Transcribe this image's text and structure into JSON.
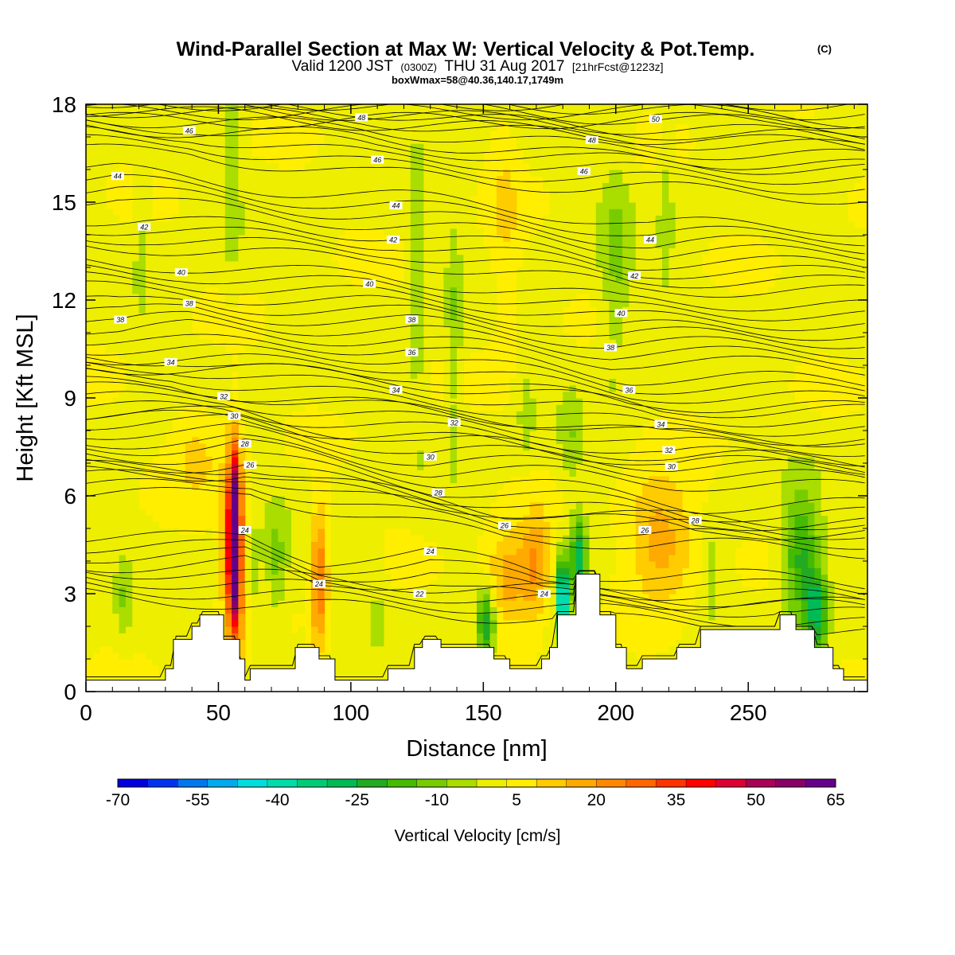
{
  "chart_data": {
    "type": "heatmap",
    "title": "Wind-Parallel Section at Max W: Vertical Velocity & Pot.Temp.",
    "title_mark": "(C)",
    "subtitle_prefix": "Valid 1200 JST",
    "subtitle_utc": "(0300Z)",
    "subtitle_date": "THU 31 Aug 2017",
    "subtitle_fcst": "[21hrFcst@1223z]",
    "subtitle2": "boxWmax=58@40.36,140.17,1749m",
    "xlabel": "Distance [nm]",
    "ylabel": "Height [Kft MSL]",
    "xlim": [
      0,
      295
    ],
    "ylim": [
      0,
      18
    ],
    "x_ticks": [
      0,
      50,
      100,
      150,
      200,
      250
    ],
    "y_ticks": [
      0,
      3,
      6,
      9,
      12,
      15,
      18
    ],
    "colorbar": {
      "label": "Vertical Velocity [cm/s]",
      "ticks": [
        -70,
        -55,
        -40,
        -25,
        -10,
        5,
        20,
        35,
        50,
        65
      ],
      "colors": [
        "#0000dd",
        "#0033ee",
        "#0077ee",
        "#00aaee",
        "#00dddd",
        "#00ddaa",
        "#00cc77",
        "#00bb55",
        "#22aa22",
        "#44bb00",
        "#77cc00",
        "#aadd00",
        "#eeee00",
        "#ffee00",
        "#ffcc00",
        "#ffaa00",
        "#ff8800",
        "#ff6600",
        "#ff3300",
        "#ff0000",
        "#dd0033",
        "#aa0055",
        "#880066",
        "#660088"
      ]
    },
    "terrain_kft": [
      [
        0,
        0.35
      ],
      [
        30,
        0.35
      ],
      [
        30,
        0.7
      ],
      [
        33,
        0.7
      ],
      [
        33,
        1.6
      ],
      [
        40,
        1.6
      ],
      [
        40,
        2.0
      ],
      [
        43,
        2.0
      ],
      [
        43,
        2.35
      ],
      [
        52,
        2.35
      ],
      [
        52,
        1.6
      ],
      [
        58,
        1.6
      ],
      [
        58,
        1.0
      ],
      [
        60,
        1.0
      ],
      [
        60,
        0.35
      ],
      [
        62,
        0.35
      ],
      [
        62,
        0.7
      ],
      [
        79,
        0.7
      ],
      [
        79,
        1.35
      ],
      [
        88,
        1.35
      ],
      [
        88,
        1.0
      ],
      [
        94,
        1.0
      ],
      [
        94,
        0.35
      ],
      [
        114,
        0.35
      ],
      [
        114,
        0.7
      ],
      [
        124,
        0.7
      ],
      [
        124,
        1.35
      ],
      [
        127,
        1.35
      ],
      [
        127,
        1.6
      ],
      [
        134,
        1.6
      ],
      [
        134,
        1.35
      ],
      [
        140,
        1.35
      ],
      [
        140,
        1.35
      ],
      [
        154,
        1.35
      ],
      [
        154,
        1.0
      ],
      [
        160,
        1.0
      ],
      [
        160,
        0.7
      ],
      [
        172,
        0.7
      ],
      [
        172,
        1.0
      ],
      [
        175,
        1.0
      ],
      [
        175,
        1.35
      ],
      [
        178,
        1.35
      ],
      [
        178,
        2.35
      ],
      [
        185,
        2.35
      ],
      [
        185,
        3.6
      ],
      [
        194,
        3.6
      ],
      [
        194,
        2.35
      ],
      [
        200,
        2.35
      ],
      [
        200,
        1.35
      ],
      [
        204,
        1.35
      ],
      [
        204,
        0.7
      ],
      [
        210,
        0.7
      ],
      [
        210,
        1.0
      ],
      [
        223,
        1.0
      ],
      [
        223,
        1.35
      ],
      [
        232,
        1.35
      ],
      [
        232,
        1.9
      ],
      [
        262,
        1.9
      ],
      [
        262,
        2.35
      ],
      [
        268,
        2.35
      ],
      [
        268,
        1.9
      ],
      [
        275,
        1.9
      ],
      [
        275,
        1.35
      ],
      [
        282,
        1.35
      ],
      [
        282,
        0.7
      ],
      [
        286,
        0.7
      ],
      [
        286,
        0.35
      ],
      [
        295,
        0.35
      ]
    ],
    "velocity_features": [
      {
        "x": 56,
        "z": 4.8,
        "wx": 2.0,
        "wz": 2.3,
        "w": 64
      },
      {
        "x": 56,
        "z": 4.2,
        "wx": 4.0,
        "wz": 3.2,
        "w": 30
      },
      {
        "x": 88,
        "z": 3.5,
        "wx": 3.0,
        "wz": 2.2,
        "w": 26
      },
      {
        "x": 160,
        "z": 3.4,
        "wx": 9.0,
        "wz": 1.5,
        "w": 18
      },
      {
        "x": 170,
        "z": 3.9,
        "wx": 5.0,
        "wz": 1.6,
        "w": 16
      },
      {
        "x": 218,
        "z": 4.3,
        "wx": 12.0,
        "wz": 1.6,
        "w": 13
      },
      {
        "x": 42,
        "z": 7.5,
        "wx": 10.0,
        "wz": 1.6,
        "w": 9
      },
      {
        "x": 215,
        "z": 5.5,
        "wx": 14.0,
        "wz": 1.6,
        "w": 8
      },
      {
        "x": 158,
        "z": 14.0,
        "wx": 6.0,
        "wz": 4.0,
        "w": 7
      },
      {
        "x": 180,
        "z": 2.8,
        "wx": 2.0,
        "wz": 1.2,
        "w": -60
      },
      {
        "x": 186,
        "z": 4.1,
        "wx": 3.0,
        "wz": 1.3,
        "w": -32
      },
      {
        "x": 151,
        "z": 2.1,
        "wx": 3.5,
        "wz": 1.0,
        "w": -28
      },
      {
        "x": 270,
        "z": 4.0,
        "wx": 7.0,
        "wz": 2.0,
        "w": -24
      },
      {
        "x": 276,
        "z": 2.4,
        "wx": 4.0,
        "wz": 1.2,
        "w": -26
      },
      {
        "x": 63,
        "z": 3.5,
        "wx": 3.0,
        "wz": 1.5,
        "w": -8
      },
      {
        "x": 72,
        "z": 3.8,
        "wx": 4.0,
        "wz": 2.0,
        "w": -10
      },
      {
        "x": 55,
        "z": 16.0,
        "wx": 3.0,
        "wz": 3.0,
        "w": -10
      },
      {
        "x": 125,
        "z": 12.5,
        "wx": 3.0,
        "wz": 4.0,
        "w": -10
      },
      {
        "x": 139,
        "z": 11.0,
        "wx": 3.0,
        "wz": 3.5,
        "w": -9
      },
      {
        "x": 200,
        "z": 13.0,
        "wx": 6.0,
        "wz": 3.5,
        "w": -10
      },
      {
        "x": 219,
        "z": 14.5,
        "wx": 2.5,
        "wz": 2.5,
        "w": -8
      },
      {
        "x": 21,
        "z": 14.0,
        "wx": 2.5,
        "wz": 2.5,
        "w": -6
      },
      {
        "x": 236,
        "z": 3.5,
        "wx": 3.0,
        "wz": 1.3,
        "w": -10
      },
      {
        "x": 14,
        "z": 2.8,
        "wx": 3.0,
        "wz": 1.3,
        "w": -8
      },
      {
        "x": 166,
        "z": 8.5,
        "wx": 3.0,
        "wz": 1.5,
        "w": -7
      },
      {
        "x": 183,
        "z": 7.6,
        "wx": 4.0,
        "wz": 1.5,
        "w": -8
      },
      {
        "x": 110,
        "z": 2.8,
        "wx": 3.0,
        "wz": 1.2,
        "w": -5
      }
    ],
    "theta_labels": [
      {
        "x": 39,
        "z": 17.2,
        "text": "46"
      },
      {
        "x": 104,
        "z": 17.6,
        "text": "48"
      },
      {
        "x": 215,
        "z": 17.55,
        "text": "50"
      },
      {
        "x": 191,
        "z": 16.9,
        "text": "48"
      },
      {
        "x": 110,
        "z": 16.3,
        "text": "46"
      },
      {
        "x": 188,
        "z": 15.95,
        "text": "46"
      },
      {
        "x": 12,
        "z": 15.8,
        "text": "44"
      },
      {
        "x": 117,
        "z": 14.9,
        "text": "44"
      },
      {
        "x": 213,
        "z": 13.85,
        "text": "44"
      },
      {
        "x": 22,
        "z": 14.25,
        "text": "42"
      },
      {
        "x": 116,
        "z": 13.85,
        "text": "42"
      },
      {
        "x": 207,
        "z": 12.75,
        "text": "42"
      },
      {
        "x": 36,
        "z": 12.85,
        "text": "40"
      },
      {
        "x": 107,
        "z": 12.5,
        "text": "40"
      },
      {
        "x": 202,
        "z": 11.6,
        "text": "40"
      },
      {
        "x": 39,
        "z": 11.9,
        "text": "38"
      },
      {
        "x": 13,
        "z": 11.4,
        "text": "38"
      },
      {
        "x": 123,
        "z": 11.4,
        "text": "38"
      },
      {
        "x": 198,
        "z": 10.55,
        "text": "38"
      },
      {
        "x": 32,
        "z": 10.1,
        "text": "34"
      },
      {
        "x": 123,
        "z": 10.4,
        "text": "36"
      },
      {
        "x": 117,
        "z": 9.25,
        "text": "34"
      },
      {
        "x": 205,
        "z": 9.25,
        "text": "36"
      },
      {
        "x": 52,
        "z": 9.05,
        "text": "32"
      },
      {
        "x": 56,
        "z": 8.45,
        "text": "30"
      },
      {
        "x": 139,
        "z": 8.25,
        "text": "32"
      },
      {
        "x": 217,
        "z": 8.2,
        "text": "34"
      },
      {
        "x": 60,
        "z": 7.6,
        "text": "28"
      },
      {
        "x": 62,
        "z": 6.95,
        "text": "26"
      },
      {
        "x": 130,
        "z": 7.2,
        "text": "30"
      },
      {
        "x": 220,
        "z": 7.4,
        "text": "32"
      },
      {
        "x": 221,
        "z": 6.9,
        "text": "30"
      },
      {
        "x": 133,
        "z": 6.1,
        "text": "28"
      },
      {
        "x": 158,
        "z": 5.1,
        "text": "26"
      },
      {
        "x": 211,
        "z": 4.95,
        "text": "26"
      },
      {
        "x": 230,
        "z": 5.25,
        "text": "28"
      },
      {
        "x": 60,
        "z": 4.95,
        "text": "24"
      },
      {
        "x": 130,
        "z": 4.3,
        "text": "24"
      },
      {
        "x": 88,
        "z": 3.3,
        "text": "24"
      },
      {
        "x": 126,
        "z": 3.0,
        "text": "22"
      },
      {
        "x": 173,
        "z": 3.0,
        "text": "24"
      }
    ]
  }
}
